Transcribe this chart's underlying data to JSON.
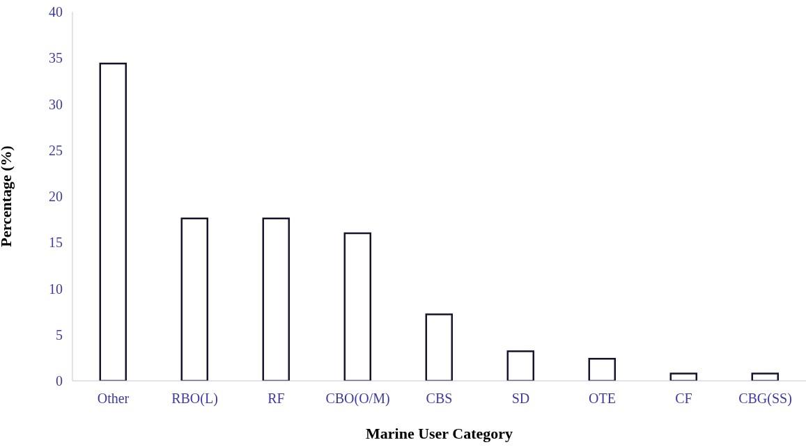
{
  "chart_data": {
    "type": "bar",
    "xlabel": "Marine User Category",
    "ylabel": "Percentage (%)",
    "categories": [
      "Other",
      "RBO(L)",
      "RF",
      "CBO(O/M)",
      "CBS",
      "SD",
      "OTE",
      "CF",
      "CBG(SS)"
    ],
    "values": [
      34.4,
      17.6,
      17.6,
      16.0,
      7.2,
      3.2,
      2.4,
      0.8,
      0.8
    ],
    "color": "#14142b",
    "ylim": [
      0,
      40
    ],
    "yticks": [
      0,
      5,
      10,
      15,
      20,
      25,
      30,
      35,
      40
    ],
    "grid": false,
    "legend": false
  }
}
